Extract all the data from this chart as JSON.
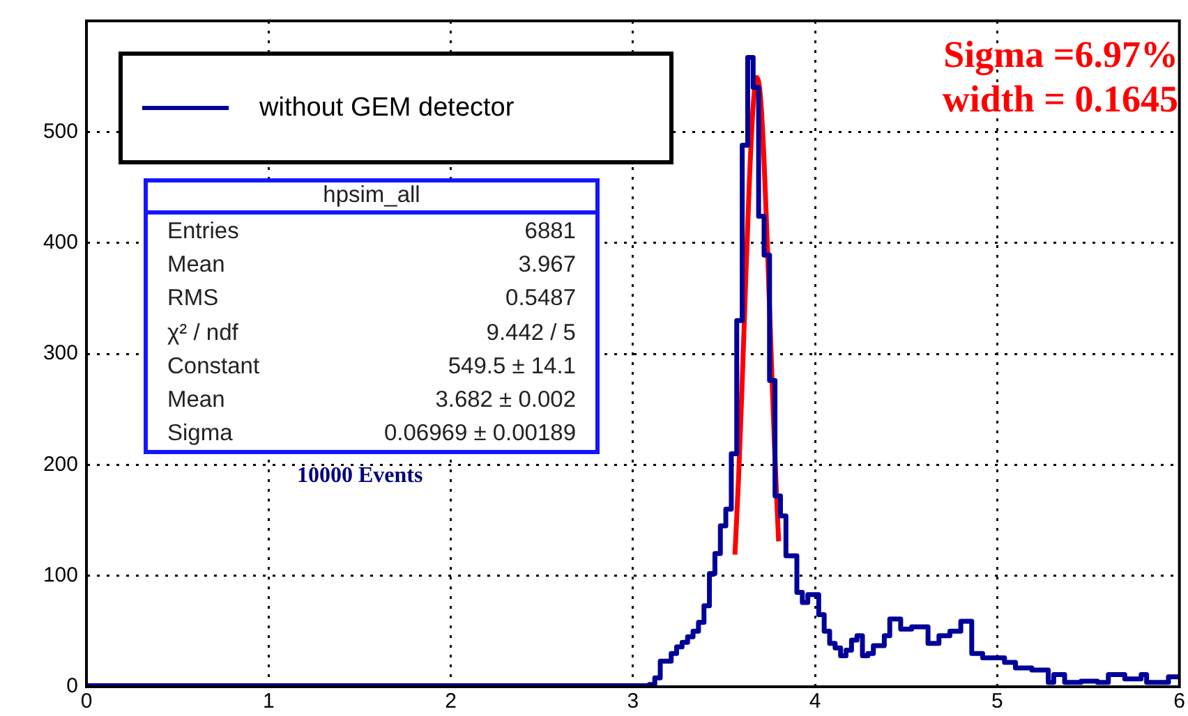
{
  "chart_data": {
    "type": "histogram",
    "bins": [
      0,
      3,
      3.03,
      3.06,
      3.09,
      3.12,
      3.15,
      3.18,
      3.21,
      3.24,
      3.27,
      3.3,
      3.33,
      3.36,
      3.39,
      3.42,
      3.45,
      3.48,
      3.51,
      3.54,
      3.57,
      3.6,
      3.63,
      3.66,
      3.69,
      3.72,
      3.75,
      3.78,
      3.81,
      3.84,
      3.87,
      3.9,
      3.93,
      3.96,
      3.99,
      4.02,
      4.05,
      4.08,
      4.11,
      4.14,
      4.17,
      4.2,
      4.23,
      4.26,
      4.29,
      4.32,
      4.35,
      4.38,
      4.41,
      4.44,
      4.47,
      4.5,
      4.53,
      4.56,
      4.59,
      4.62,
      4.65,
      4.68,
      4.71,
      4.74,
      4.77,
      4.8,
      4.83,
      4.86,
      4.89,
      4.92,
      4.95,
      4.98,
      5.01,
      5.04,
      5.07,
      5.1,
      5.13,
      5.16,
      5.19,
      5.22,
      5.25,
      5.28,
      5.31,
      5.34,
      5.37,
      5.4,
      5.43,
      5.46,
      5.49,
      5.52,
      5.55,
      5.58,
      5.61,
      5.64,
      5.67,
      5.7,
      5.73,
      5.76,
      5.79,
      5.82,
      5.85,
      5.88,
      5.91,
      5.94,
      5.97,
      6
    ],
    "series": [
      {
        "name": "without GEM detector",
        "color": "#000099",
        "values": [
          1,
          1,
          1,
          1,
          2,
          8,
          23,
          23,
          30,
          36,
          40,
          45,
          50,
          58,
          73,
          102,
          120,
          145,
          160,
          210,
          330,
          488,
          567,
          540,
          424,
          389,
          276,
          172,
          154,
          118,
          118,
          85,
          76,
          83,
          83,
          65,
          50,
          39,
          35,
          28,
          33,
          42,
          46,
          28,
          30,
          37,
          37,
          46,
          61,
          61,
          52,
          52,
          54,
          54,
          54,
          39,
          39,
          46,
          46,
          50,
          50,
          59,
          59,
          30,
          30,
          26,
          26,
          26,
          26,
          22,
          22,
          17,
          17,
          17,
          15,
          15,
          15,
          4,
          11,
          11,
          4,
          4,
          4,
          5,
          5,
          5,
          4,
          4,
          11,
          11,
          11,
          7,
          7,
          7,
          11,
          4,
          4,
          4,
          4,
          9,
          9
        ]
      },
      {
        "type": "line",
        "color": "#ff0000",
        "x": [
          3.56,
          3.58,
          3.6,
          3.62,
          3.64,
          3.66,
          3.68,
          3.7,
          3.72,
          3.74,
          3.76,
          3.78,
          3.8
        ],
        "values": [
          119,
          188,
          275,
          370,
          458,
          523,
          549,
          532,
          474,
          389,
          294,
          205,
          131
        ]
      }
    ],
    "xlim": [
      0,
      6
    ],
    "xticks": [
      0,
      1,
      2,
      3,
      4,
      5,
      6
    ],
    "ylim": [
      0,
      600
    ],
    "yticks": [
      0,
      100,
      200,
      300,
      400,
      500
    ],
    "grid": true,
    "legend": "top left",
    "annotations": [
      "hpsim_all",
      "Entries",
      "6881",
      "Mean",
      "3.967",
      "RMS",
      "0.5487",
      "χ² / ndf",
      "9.442 / 5",
      "Constant",
      "549.5 ± 14.1",
      "Mean",
      "3.682 ± 0.002",
      "Sigma",
      "0.06969 ± 0.00189",
      "10000 Events",
      "Sigma =6.97%",
      "width = 0.1645"
    ]
  }
}
